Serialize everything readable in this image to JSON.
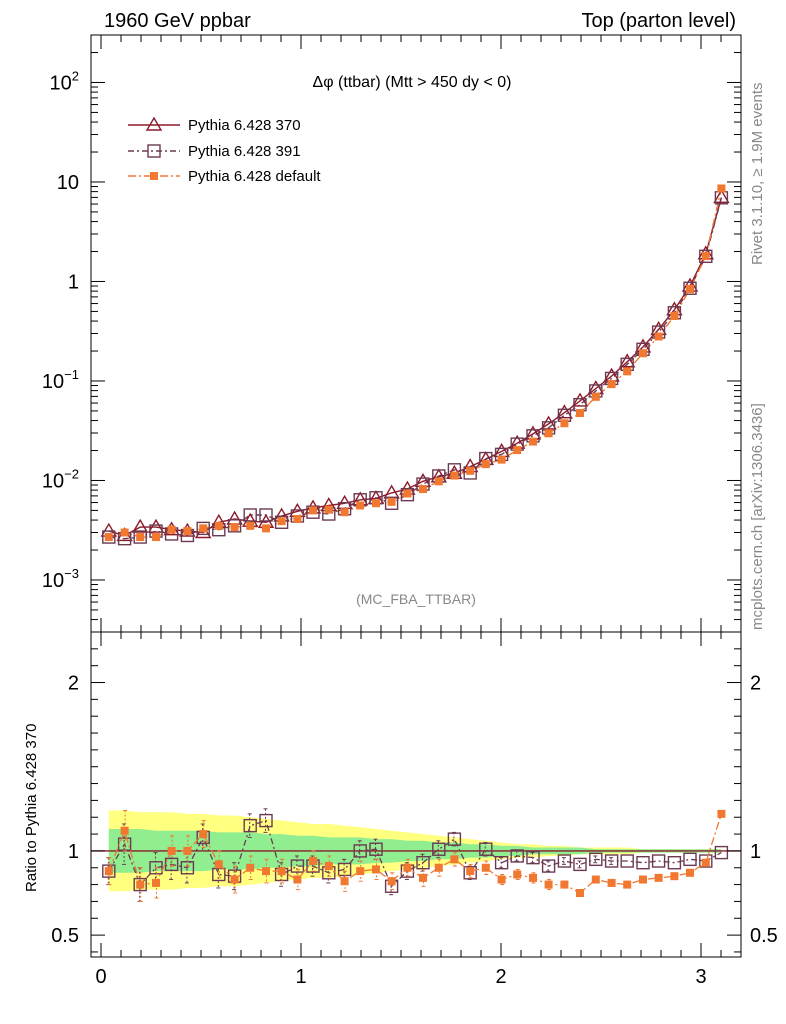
{
  "header": {
    "left": "1960 GeV ppbar",
    "right": "Top (parton level)"
  },
  "side": {
    "rivet": "Rivet 3.1.10, ≥ 1.9M events",
    "mcplots": "mcplots.cern.ch [arXiv:1306.3436]"
  },
  "chart_data": {
    "type": "line",
    "title": "Δφ (ttbar) (Mtt > 450 dy < 0)",
    "watermark": "(MC_FBA_TTBAR)",
    "xlabel": "",
    "ylabel": "",
    "ratio_ylabel": "Ratio to Pythia 6.428 370",
    "xlim": [
      -0.05,
      3.2
    ],
    "ylim": [
      0.0003,
      300
    ],
    "ylog": true,
    "ratio_ylim": [
      0.37,
      2.3
    ],
    "x_ticks": [
      "0",
      "1",
      "2",
      "3"
    ],
    "y_ticks": [
      {
        "base": "10",
        "exp": "2"
      },
      {
        "base": "10",
        "exp": ""
      },
      {
        "base": "1",
        "exp": ""
      },
      {
        "base": "10",
        "exp": "−1"
      },
      {
        "base": "10",
        "exp": "−2"
      },
      {
        "base": "10",
        "exp": "−3"
      }
    ],
    "ratio_ticks": [
      "2",
      "1",
      "0.5"
    ],
    "colors": {
      "s370": "#8b1a2a",
      "s391": "#6b3a52",
      "sdef": "#f07830",
      "band_yellow": "#ffff80",
      "band_green": "#90ee90"
    },
    "x": [
      0.039,
      0.118,
      0.196,
      0.275,
      0.353,
      0.432,
      0.511,
      0.589,
      0.668,
      0.746,
      0.825,
      0.903,
      0.982,
      1.06,
      1.139,
      1.218,
      1.296,
      1.375,
      1.453,
      1.532,
      1.61,
      1.689,
      1.767,
      1.846,
      1.924,
      2.003,
      2.081,
      2.16,
      2.238,
      2.317,
      2.395,
      2.474,
      2.553,
      2.631,
      2.71,
      2.788,
      2.867,
      2.945,
      3.024,
      3.102
    ],
    "series": [
      {
        "name": "Pythia 6.428 370",
        "key": "s370",
        "values": [
          0.0031,
          0.0028,
          0.0034,
          0.0034,
          0.0032,
          0.0031,
          0.003,
          0.0038,
          0.0041,
          0.0039,
          0.0038,
          0.0044,
          0.0049,
          0.0053,
          0.0056,
          0.0059,
          0.0064,
          0.0066,
          0.0075,
          0.0082,
          0.0098,
          0.0109,
          0.0118,
          0.0138,
          0.0163,
          0.0196,
          0.0237,
          0.0294,
          0.037,
          0.048,
          0.063,
          0.084,
          0.112,
          0.156,
          0.22,
          0.33,
          0.52,
          0.9,
          1.9,
          7.0
        ]
      },
      {
        "name": "Pythia 6.428 391",
        "key": "s391",
        "values": [
          0.0027,
          0.0026,
          0.0027,
          0.0031,
          0.0029,
          0.0028,
          0.0033,
          0.0032,
          0.0035,
          0.0045,
          0.0045,
          0.0038,
          0.0044,
          0.0048,
          0.0046,
          0.0052,
          0.0064,
          0.0067,
          0.0059,
          0.0072,
          0.0092,
          0.0111,
          0.0128,
          0.0119,
          0.0166,
          0.0183,
          0.0232,
          0.0281,
          0.0338,
          0.0452,
          0.0578,
          0.0794,
          0.106,
          0.147,
          0.208,
          0.31,
          0.485,
          0.855,
          1.79,
          6.93
        ]
      },
      {
        "name": "Pythia 6.428 default",
        "key": "sdef",
        "values": [
          0.0027,
          0.003,
          0.0027,
          0.0027,
          0.0032,
          0.0031,
          0.0033,
          0.0035,
          0.0034,
          0.0035,
          0.0033,
          0.0039,
          0.0041,
          0.005,
          0.0051,
          0.0048,
          0.0056,
          0.0059,
          0.0061,
          0.0074,
          0.0082,
          0.0098,
          0.0112,
          0.0125,
          0.0146,
          0.0162,
          0.0202,
          0.0246,
          0.0298,
          0.0376,
          0.0476,
          0.0693,
          0.093,
          0.125,
          0.19,
          0.28,
          0.45,
          0.84,
          1.8,
          8.6
        ]
      }
    ],
    "ratios": {
      "s391": [
        0.88,
        1.04,
        0.8,
        0.9,
        0.92,
        0.9,
        1.08,
        0.86,
        0.85,
        1.15,
        1.18,
        0.86,
        0.91,
        0.91,
        0.87,
        0.89,
        1.0,
        1.01,
        0.79,
        0.88,
        0.93,
        1.01,
        1.07,
        0.87,
        1.01,
        0.93,
        0.97,
        0.96,
        0.91,
        0.94,
        0.92,
        0.95,
        0.94,
        0.94,
        0.93,
        0.94,
        0.93,
        0.95,
        0.94,
        0.99
      ],
      "sdef": [
        0.88,
        1.12,
        0.8,
        0.81,
        1.0,
        1.0,
        1.1,
        0.92,
        0.83,
        0.9,
        0.88,
        0.88,
        0.83,
        0.94,
        0.91,
        0.82,
        0.88,
        0.89,
        0.82,
        0.9,
        0.84,
        0.9,
        0.95,
        0.88,
        0.9,
        0.83,
        0.86,
        0.84,
        0.8,
        0.8,
        0.75,
        0.83,
        0.81,
        0.8,
        0.83,
        0.84,
        0.85,
        0.87,
        0.93,
        1.22
      ]
    },
    "ratio_errors": [
      0.08,
      0.12,
      0.1,
      0.09,
      0.09,
      0.09,
      0.08,
      0.08,
      0.08,
      0.07,
      0.07,
      0.07,
      0.06,
      0.06,
      0.06,
      0.06,
      0.06,
      0.06,
      0.05,
      0.05,
      0.05,
      0.05,
      0.04,
      0.04,
      0.04,
      0.03,
      0.03,
      0.03,
      0.03,
      0.02,
      0.02,
      0.02,
      0.02,
      0.01,
      0.01,
      0.01,
      0.01,
      0.01,
      0.01,
      0.01
    ],
    "band_yellow": [
      0.24,
      0.24,
      0.23,
      0.23,
      0.23,
      0.22,
      0.22,
      0.21,
      0.21,
      0.2,
      0.19,
      0.18,
      0.17,
      0.16,
      0.16,
      0.15,
      0.14,
      0.13,
      0.12,
      0.11,
      0.1,
      0.09,
      0.08,
      0.07,
      0.06,
      0.05,
      0.04,
      0.04,
      0.03,
      0.03,
      0.02,
      0.02,
      0.02,
      0.02,
      0.01,
      0.01,
      0.01,
      0.01,
      0.01,
      0.01
    ],
    "band_green": [
      0.13,
      0.13,
      0.13,
      0.12,
      0.12,
      0.12,
      0.12,
      0.11,
      0.11,
      0.11,
      0.1,
      0.1,
      0.09,
      0.09,
      0.08,
      0.08,
      0.08,
      0.07,
      0.07,
      0.06,
      0.06,
      0.05,
      0.05,
      0.04,
      0.04,
      0.03,
      0.03,
      0.02,
      0.02,
      0.02,
      0.02,
      0.01,
      0.01,
      0.01,
      0.01,
      0.01,
      0.01,
      0.01,
      0.01,
      0.01
    ]
  }
}
